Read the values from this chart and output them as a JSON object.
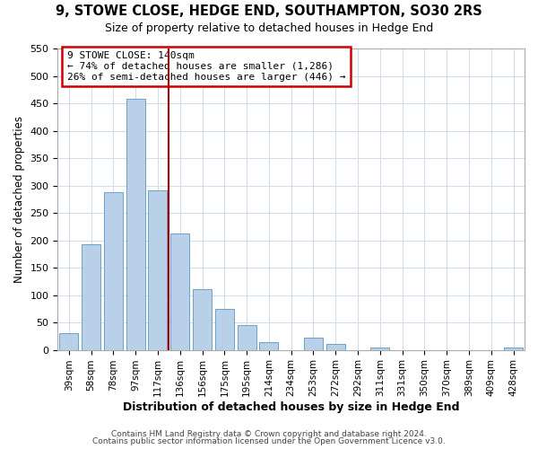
{
  "title": "9, STOWE CLOSE, HEDGE END, SOUTHAMPTON, SO30 2RS",
  "subtitle": "Size of property relative to detached houses in Hedge End",
  "xlabel": "Distribution of detached houses by size in Hedge End",
  "ylabel": "Number of detached properties",
  "bar_labels": [
    "39sqm",
    "58sqm",
    "78sqm",
    "97sqm",
    "117sqm",
    "136sqm",
    "156sqm",
    "175sqm",
    "195sqm",
    "214sqm",
    "234sqm",
    "253sqm",
    "272sqm",
    "292sqm",
    "311sqm",
    "331sqm",
    "350sqm",
    "370sqm",
    "389sqm",
    "409sqm",
    "428sqm"
  ],
  "bar_values": [
    30,
    192,
    287,
    459,
    291,
    213,
    110,
    74,
    46,
    14,
    0,
    23,
    10,
    0,
    5,
    0,
    0,
    0,
    0,
    0,
    5
  ],
  "bar_color": "#b8d0e8",
  "bar_edge_color": "#6aa0cc",
  "vline_x_idx": 4,
  "vline_color": "#aa0000",
  "annotation_text": "9 STOWE CLOSE: 140sqm\n← 74% of detached houses are smaller (1,286)\n26% of semi-detached houses are larger (446) →",
  "annotation_box_color": "#cc0000",
  "ylim": [
    0,
    550
  ],
  "yticks": [
    0,
    50,
    100,
    150,
    200,
    250,
    300,
    350,
    400,
    450,
    500,
    550
  ],
  "footer1": "Contains HM Land Registry data © Crown copyright and database right 2024.",
  "footer2": "Contains public sector information licensed under the Open Government Licence v3.0.",
  "bg_color": "#ffffff",
  "grid_color": "#d0daea"
}
